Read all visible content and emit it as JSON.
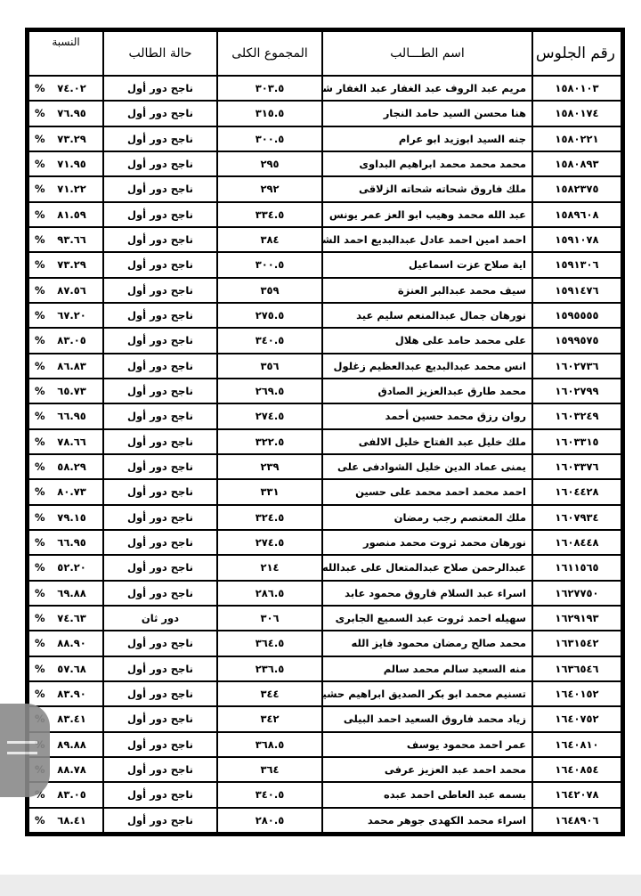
{
  "headers": {
    "seat": "رقم الجلوس",
    "name": "اسم الطـــالب",
    "total": "المجموع الكلى",
    "status": "حالة الطالب",
    "pct": "النسبة"
  },
  "pct_sign": "%",
  "rows": [
    {
      "seat": "١٥٨٠١٠٣",
      "name": "مريم عبد الروف عبد الغفار عبد الغفار شو؛",
      "total": "٣٠٣.٥",
      "status": "ناجح دور أول",
      "pct": "٧٤.٠٢"
    },
    {
      "seat": "١٥٨٠١٧٤",
      "name": "هنا محسن السيد حامد النجار",
      "total": "٣١٥.٥",
      "status": "ناجح دور أول",
      "pct": "٧٦.٩٥"
    },
    {
      "seat": "١٥٨٠٢٢١",
      "name": "جنه السيد ابوزيد ابو عرام",
      "total": "٣٠٠.٥",
      "status": "ناجح دور أول",
      "pct": "٧٣.٢٩"
    },
    {
      "seat": "١٥٨٠٨٩٣",
      "name": "محمد محمد محمد ابراهيم البداوى",
      "total": "٢٩٥",
      "status": "ناجح دور أول",
      "pct": "٧١.٩٥"
    },
    {
      "seat": "١٥٨٢٣٧٥",
      "name": "ملك فاروق شحاته شحاته الزلاقى",
      "total": "٢٩٢",
      "status": "ناجح دور أول",
      "pct": "٧١.٢٢"
    },
    {
      "seat": "١٥٨٩٦٠٨",
      "name": "عبد الله محمد وهيب  ابو العز عمر يونس",
      "total": "٣٣٤.٥",
      "status": "ناجح دور أول",
      "pct": "٨١.٥٩"
    },
    {
      "seat": "١٥٩١٠٧٨",
      "name": "احمد امين احمد عادل عبدالبديع احمد الشحـ",
      "total": "٣٨٤",
      "status": "ناجح دور أول",
      "pct": "٩٣.٦٦"
    },
    {
      "seat": "١٥٩١٣٠٦",
      "name": "اية صلاح عزت اسماعيل",
      "total": "٣٠٠.٥",
      "status": "ناجح دور أول",
      "pct": "٧٣.٢٩"
    },
    {
      "seat": "١٥٩١٤٧٦",
      "name": "سيف محمد عبدالبر العنزة",
      "total": "٣٥٩",
      "status": "ناجح دور أول",
      "pct": "٨٧.٥٦"
    },
    {
      "seat": "١٥٩٥٥٥٥",
      "name": "نورهان جمال عبدالمنعم سليم عيد",
      "total": "٢٧٥.٥",
      "status": "ناجح دور أول",
      "pct": "٦٧.٢٠"
    },
    {
      "seat": "١٥٩٩٥٧٥",
      "name": "على محمد حامد على هلال",
      "total": "٣٤٠.٥",
      "status": "ناجح دور أول",
      "pct": "٨٣.٠٥"
    },
    {
      "seat": "١٦٠٢٧٣٦",
      "name": "انس محمد عبدالبديع عبدالعظيم زغلول",
      "total": "٣٥٦",
      "status": "ناجح دور أول",
      "pct": "٨٦.٨٣"
    },
    {
      "seat": "١٦٠٢٧٩٩",
      "name": "محمد طارق عبدالعزيز الصادق",
      "total": "٢٦٩.٥",
      "status": "ناجح دور أول",
      "pct": "٦٥.٧٣"
    },
    {
      "seat": "١٦٠٣٢٤٩",
      "name": "روان رزق محمد حسين أحمد",
      "total": "٢٧٤.٥",
      "status": "ناجح دور أول",
      "pct": "٦٦.٩٥"
    },
    {
      "seat": "١٦٠٣٣١٥",
      "name": "ملك خليل عبد الفتاح خليل الالفى",
      "total": "٣٢٢.٥",
      "status": "ناجح دور أول",
      "pct": "٧٨.٦٦"
    },
    {
      "seat": "١٦٠٣٣٧٦",
      "name": "يمنى عماد الدين خليل الشوادفى على",
      "total": "٢٣٩",
      "status": "ناجح دور أول",
      "pct": "٥٨.٢٩"
    },
    {
      "seat": "١٦٠٤٤٢٨",
      "name": "احمد محمد احمد محمد على حسين",
      "total": "٣٣١",
      "status": "ناجح دور أول",
      "pct": "٨٠.٧٣"
    },
    {
      "seat": "١٦٠٧٩٣٤",
      "name": "ملك المعتصم رجب رمضان",
      "total": "٣٢٤.٥",
      "status": "ناجح دور أول",
      "pct": "٧٩.١٥"
    },
    {
      "seat": "١٦٠٨٤٤٨",
      "name": "نورهان محمد ثروت محمد منصور",
      "total": "٢٧٤.٥",
      "status": "ناجح دور أول",
      "pct": "٦٦.٩٥"
    },
    {
      "seat": "١٦١١٥٦٥",
      "name": "عبدالرحمن صلاح عبدالمتعال على عبدالله",
      "total": "٢١٤",
      "status": "ناجح دور أول",
      "pct": "٥٢.٢٠"
    },
    {
      "seat": "١٦٢٧٧٥٠",
      "name": "اسراء عبد السلام فاروق محمود عابد",
      "total": "٢٨٦.٥",
      "status": "ناجح دور أول",
      "pct": "٦٩.٨٨"
    },
    {
      "seat": "١٦٢٩١٩٣",
      "name": "سهيله احمد ثروت عبد السميع الجابرى",
      "total": "٣٠٦",
      "status": "دور ثان",
      "pct": "٧٤.٦٣"
    },
    {
      "seat": "١٦٣١٥٤٢",
      "name": "محمد صالح رمضان محمود فايز الله",
      "total": "٣٦٤.٥",
      "status": "ناجح دور أول",
      "pct": "٨٨.٩٠"
    },
    {
      "seat": "١٦٣٦٥٤٦",
      "name": "منه السعيد سالم محمد سالم",
      "total": "٢٣٦.٥",
      "status": "ناجح دور أول",
      "pct": "٥٧.٦٨"
    },
    {
      "seat": "١٦٤٠١٥٢",
      "name": "تسنيم محمد ابو بكر الصديق ابراهيم حشيش",
      "total": "٣٤٤",
      "status": "ناجح دور أول",
      "pct": "٨٣.٩٠"
    },
    {
      "seat": "١٦٤٠٧٥٢",
      "name": "زياد محمد فاروق السعيد احمد البيلى",
      "total": "٣٤٢",
      "status": "ناجح دور أول",
      "pct": "٨٣.٤١"
    },
    {
      "seat": "١٦٤٠٨١٠",
      "name": "عمر احمد محمود يوسف",
      "total": "٣٦٨.٥",
      "status": "ناجح دور أول",
      "pct": "٨٩.٨٨"
    },
    {
      "seat": "١٦٤٠٨٥٤",
      "name": "محمد احمد عبد العزيز عرفى",
      "total": "٣٦٤",
      "status": "ناجح دور أول",
      "pct": "٨٨.٧٨"
    },
    {
      "seat": "١٦٤٢٠٧٨",
      "name": "بسمه عبد العاطى احمد عبده",
      "total": "٣٤٠.٥",
      "status": "ناجح دور أول",
      "pct": "٨٣.٠٥"
    },
    {
      "seat": "١٦٤٨٩٠٦",
      "name": "اسراء محمد الكهدى جوهر محمد",
      "total": "٢٨٠.٥",
      "status": "ناجح دور أول",
      "pct": "٦٨.٤١"
    }
  ],
  "overlay": {
    "icon": "menu-handle-icon"
  }
}
